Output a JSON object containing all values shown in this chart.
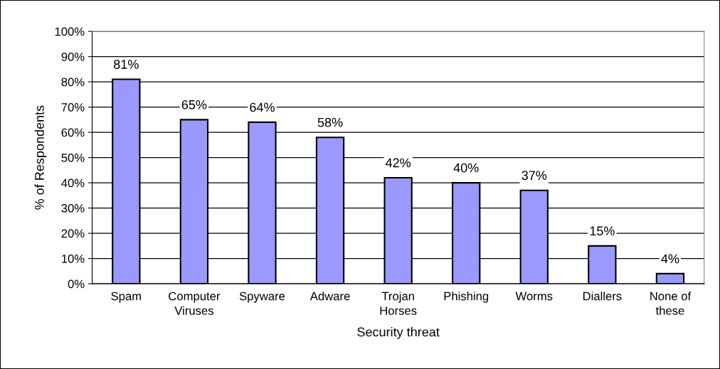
{
  "chart_data": {
    "type": "bar",
    "xlabel": "Security threat",
    "ylabel": "% of Respondents",
    "categories": [
      "Spam",
      "Computer\nViruses",
      "Spyware",
      "Adware",
      "Trojan\nHorses",
      "Phishing",
      "Worms",
      "Diallers",
      "None of\nthese"
    ],
    "values": [
      81,
      65,
      64,
      58,
      42,
      40,
      37,
      15,
      4
    ],
    "value_labels": [
      "81%",
      "65%",
      "64%",
      "58%",
      "42%",
      "40%",
      "37%",
      "15%",
      "4%"
    ],
    "color": "#9999ff",
    "ylim": [
      0,
      100
    ],
    "yticks": [
      {
        "value": 0,
        "label": "0%"
      },
      {
        "value": 10,
        "label": "10%"
      },
      {
        "value": 20,
        "label": "20%"
      },
      {
        "value": 30,
        "label": "30%"
      },
      {
        "value": 40,
        "label": "40%"
      },
      {
        "value": 50,
        "label": "50%"
      },
      {
        "value": 60,
        "label": "60%"
      },
      {
        "value": 70,
        "label": "70%"
      },
      {
        "value": 80,
        "label": "80%"
      },
      {
        "value": 90,
        "label": "90%"
      },
      {
        "value": 100,
        "label": "100%"
      }
    ],
    "grid": "y",
    "legend": false
  }
}
